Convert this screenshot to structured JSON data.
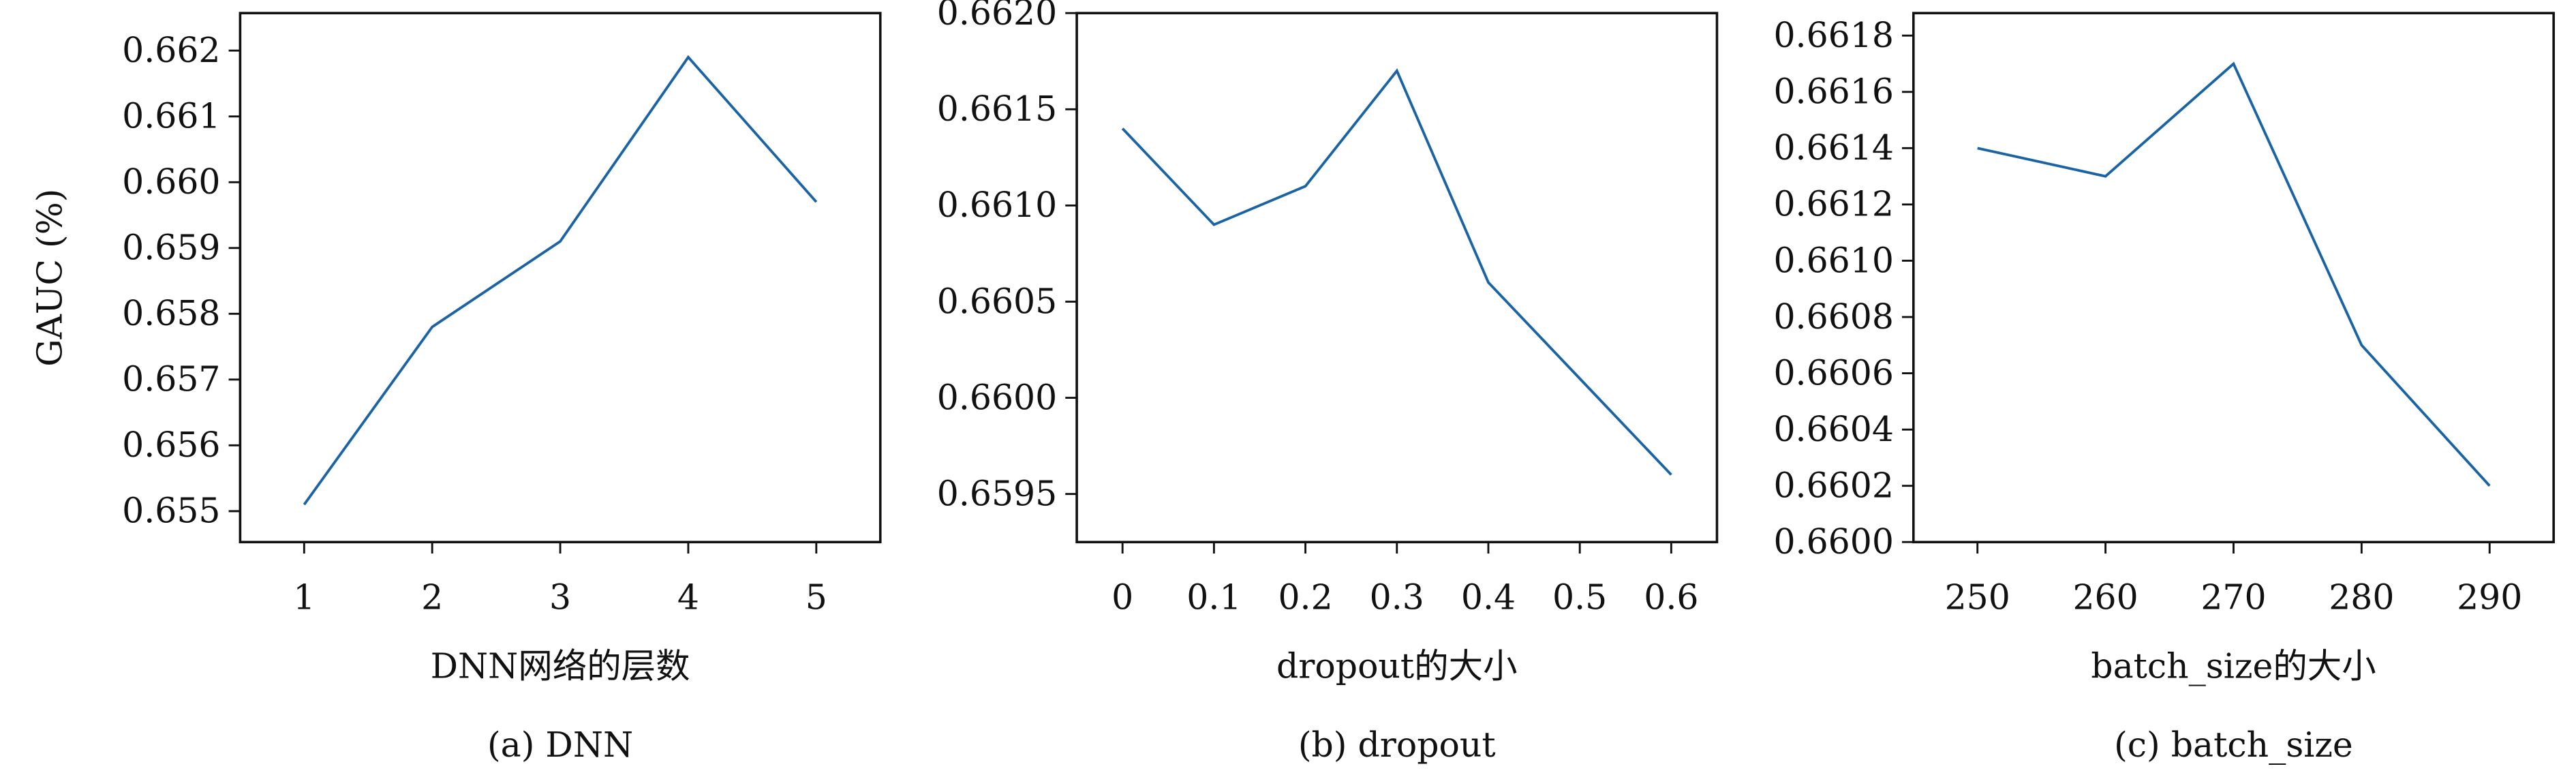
{
  "chart_data": [
    {
      "type": "line",
      "caption": "(a) DNN",
      "xlabel": "DNN网络的层数",
      "ylabel": "GAUC (%)",
      "x": [
        1,
        2,
        3,
        4,
        5
      ],
      "series": [
        {
          "color": "#1a63a5",
          "values": [
            0.6551,
            0.6578,
            0.6591,
            0.6619,
            0.6597
          ]
        }
      ],
      "xlim": [
        0.5,
        5.5
      ],
      "xticks": [
        1,
        2,
        3,
        4,
        5
      ],
      "ylim": [
        0.65453,
        0.66257
      ],
      "yticks": [
        0.655,
        0.656,
        0.657,
        0.658,
        0.659,
        {
          "value": 0.66,
          "label": "0.660"
        },
        0.661,
        0.662
      ]
    },
    {
      "type": "line",
      "caption": "(b) dropout",
      "xlabel": "dropout的大小",
      "x": [
        0,
        0.1,
        0.2,
        0.3,
        0.4,
        0.5,
        0.6
      ],
      "series": [
        {
          "color": "#1a63a5",
          "values": [
            0.6614,
            0.6609,
            0.6611,
            0.6617,
            0.6606,
            0.6601,
            0.6596
          ]
        }
      ],
      "xlim": [
        -0.05,
        0.65
      ],
      "xticks": [
        0,
        0.1,
        0.2,
        0.3,
        0.4,
        0.5,
        0.6
      ],
      "ylim": [
        0.65925,
        0.662
      ],
      "yticks": [
        0.6595,
        {
          "value": 0.66,
          "label": "0.6600"
        },
        0.6605,
        {
          "value": 0.661,
          "label": "0.6610"
        },
        0.6615,
        {
          "value": 0.662,
          "label": "0.6620"
        }
      ]
    },
    {
      "type": "line",
      "caption": "(c) batch_size",
      "xlabel": "batch_size的大小",
      "x": [
        250,
        260,
        270,
        280,
        290
      ],
      "series": [
        {
          "color": "#1a63a5",
          "values": [
            0.6614,
            0.6613,
            0.6617,
            0.6607,
            0.6602
          ]
        }
      ],
      "xlim": [
        245,
        295
      ],
      "xticks": [
        250,
        260,
        270,
        280,
        290
      ],
      "ylim": [
        0.66,
        0.66188
      ],
      "yticks": [
        {
          "value": 0.66,
          "label": "0.6600"
        },
        0.6602,
        0.6604,
        0.6606,
        0.6608,
        {
          "value": 0.661,
          "label": "0.6610"
        },
        0.6612,
        0.6614,
        0.6616,
        0.6618
      ]
    }
  ]
}
